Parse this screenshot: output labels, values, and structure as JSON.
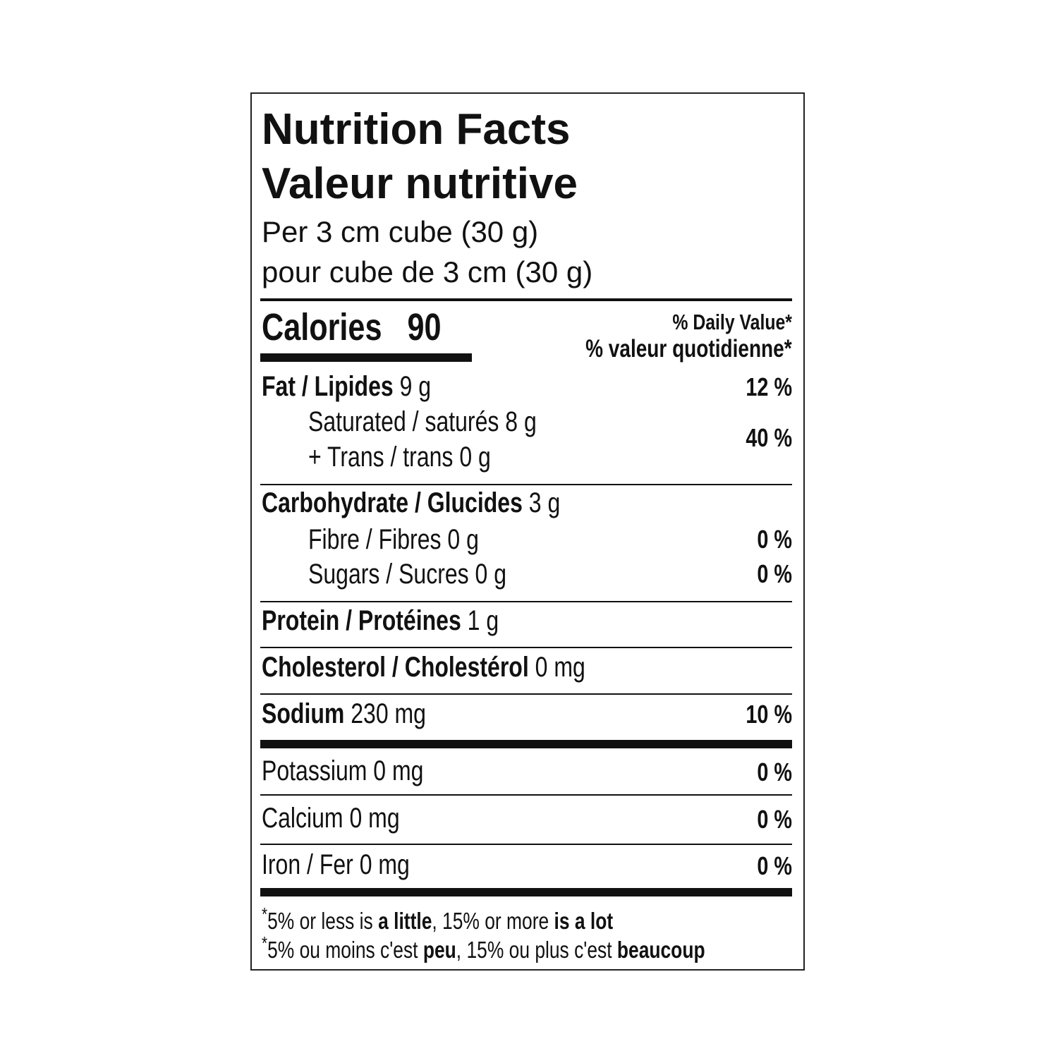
{
  "title_en": "Nutrition Facts",
  "title_fr": "Valeur nutritive",
  "serving_en": "Per 3 cm cube (30 g)",
  "serving_fr": "pour cube de 3 cm (30 g)",
  "calories": {
    "label": "Calories",
    "value": "90"
  },
  "daily_value": {
    "en": "% Daily Value*",
    "fr": "% valeur quotidienne*"
  },
  "nutrients": {
    "fat": {
      "label": "Fat / Lipides",
      "amount": "9 g",
      "dv": "12 %"
    },
    "saturated": {
      "label": "Saturated / saturés 8 g"
    },
    "trans": {
      "label": "+ Trans / trans 0 g"
    },
    "sat_trans_dv": "40 %",
    "carb": {
      "label": "Carbohydrate / Glucides",
      "amount": "3 g"
    },
    "fibre": {
      "label": "Fibre / Fibres 0 g",
      "dv": "0 %"
    },
    "sugars": {
      "label": "Sugars / Sucres 0 g",
      "dv": "0 %"
    },
    "protein": {
      "label": "Protein / Protéines",
      "amount": "1 g"
    },
    "cholesterol": {
      "label": "Cholesterol / Cholestérol",
      "amount": "0 mg"
    },
    "sodium": {
      "label": "Sodium",
      "amount": "230 mg",
      "dv": "10 %"
    },
    "potassium": {
      "label": "Potassium 0 mg",
      "dv": "0 %"
    },
    "calcium": {
      "label": "Calcium 0 mg",
      "dv": "0 %"
    },
    "iron": {
      "label": "Iron / Fer 0 mg",
      "dv": "0 %"
    }
  },
  "footnote": {
    "star": "*",
    "en": {
      "a": "5% or less is ",
      "b": "a little",
      "c": ", 15% or more ",
      "d": "is a lot"
    },
    "fr": {
      "a": "5% ou moins c'est ",
      "b": "peu",
      "c": ", 15% ou plus c'est ",
      "d": "beaucoup"
    }
  }
}
